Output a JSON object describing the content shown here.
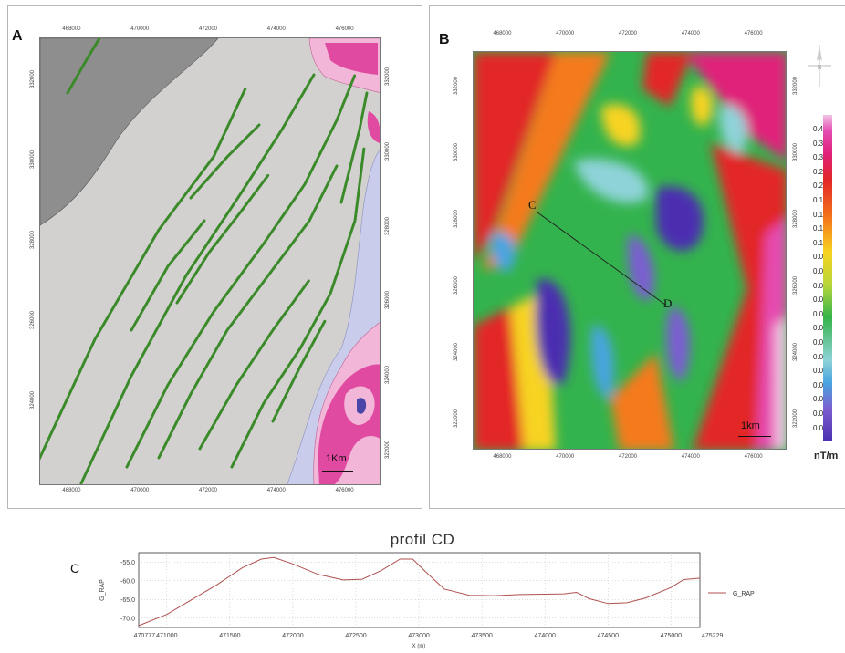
{
  "panels": {
    "a_label": "A",
    "b_label": "B",
    "c_label": "C"
  },
  "map_a": {
    "x_ticks": [
      "468000",
      "470000",
      "472000",
      "474000",
      "476000"
    ],
    "y_ticks": [
      "332000",
      "330000",
      "328000",
      "326000",
      "324000"
    ],
    "y_ticks_right": [
      "332000",
      "330000",
      "328000",
      "326000",
      "324000",
      "322000"
    ],
    "scale_label": "1Km",
    "colors": {
      "basement": "#d3d1cf",
      "cover": "#8e8e8e",
      "dyke": "#3a8a2a",
      "intrusion_pink": "#e04aa0",
      "intrusion_light": "#f2b6d8",
      "aureole": "#c9cdeb",
      "core": "#4a45a8"
    }
  },
  "map_b": {
    "x_ticks": [
      "468000",
      "470000",
      "472000",
      "474000",
      "476000"
    ],
    "y_ticks": [
      "332000",
      "330000",
      "328000",
      "326000",
      "324000",
      "322000"
    ],
    "y_ticks_right": [
      "332000",
      "330000",
      "328000",
      "326000",
      "324000",
      "322000"
    ],
    "scale_label": "1km",
    "profile_start": "C",
    "profile_end": "D",
    "north_label": "N",
    "colorbar_ticks": [
      "0.4",
      "0.3",
      "0.3",
      "0.2",
      "0.2",
      "0.1",
      "0.1",
      "0.1",
      "0.1",
      "0.0",
      "0.0",
      "0.0",
      "0.0",
      "0.0",
      "0.0",
      "0.0",
      "0.0",
      "0.0",
      "0.0",
      "0.0",
      "0.0",
      "0.0"
    ],
    "colorbar_unit": "nT/m"
  },
  "profile_title": "profil CD",
  "chart_data": {
    "type": "line",
    "title": "profil CD",
    "xlabel": "X (m)",
    "ylabel": "G_RAP",
    "x_ticks": [
      "470777",
      "471000",
      "471500",
      "472000",
      "472500",
      "473000",
      "473500",
      "474000",
      "474500",
      "475000",
      "475229"
    ],
    "y_ticks": [
      "-55.0",
      "-60.0",
      "-65.0",
      "-70.0"
    ],
    "xlim": [
      470777,
      475229
    ],
    "ylim": [
      -72.5,
      -52.5
    ],
    "grid": true,
    "legend_position": "right",
    "series": [
      {
        "name": "G_RAP",
        "color": "#b05050",
        "x": [
          470777,
          471000,
          471200,
          471400,
          471600,
          471750,
          471850,
          472000,
          472200,
          472400,
          472550,
          472700,
          472850,
          472950,
          473050,
          473200,
          473400,
          473600,
          473800,
          474000,
          474150,
          474250,
          474350,
          474500,
          474650,
          474800,
          475000,
          475100,
          475229
        ],
        "y": [
          -72.0,
          -69.0,
          -65.0,
          -61.0,
          -56.5,
          -54.2,
          -53.8,
          -55.5,
          -58.3,
          -59.8,
          -59.6,
          -57.3,
          -54.2,
          -54.2,
          -57.5,
          -62.2,
          -63.9,
          -64.0,
          -63.7,
          -63.6,
          -63.5,
          -63.1,
          -64.8,
          -66.1,
          -65.9,
          -64.6,
          -61.8,
          -59.7,
          -59.3
        ]
      }
    ]
  }
}
